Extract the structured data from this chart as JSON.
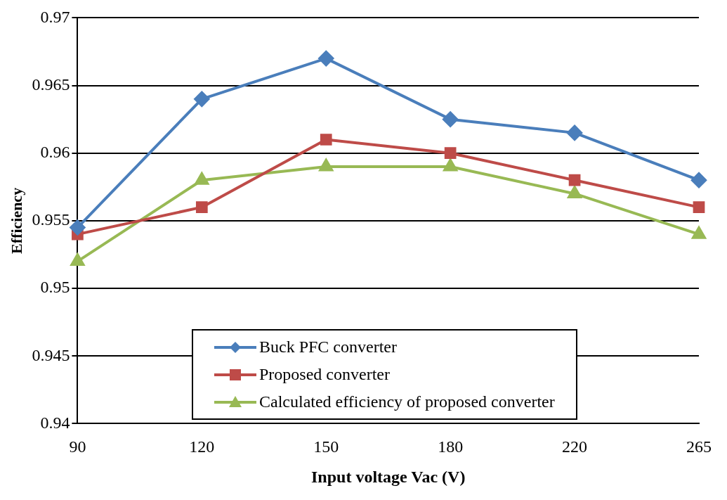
{
  "chart_data": {
    "type": "line",
    "xlabel": "Input voltage Vac (V)",
    "ylabel": "Efficiency",
    "categories": [
      "90",
      "120",
      "150",
      "180",
      "220",
      "265"
    ],
    "series": [
      {
        "name": "Buck PFC converter",
        "color": "#4a7ebb",
        "marker": "diamond",
        "values": [
          0.9545,
          0.964,
          0.967,
          0.9625,
          0.9615,
          0.958
        ]
      },
      {
        "name": "Proposed converter",
        "color": "#be4b48",
        "marker": "square",
        "values": [
          0.954,
          0.956,
          0.961,
          0.96,
          0.958,
          0.956
        ]
      },
      {
        "name": "Calculated efficiency of proposed converter",
        "color": "#98b954",
        "marker": "triangle",
        "values": [
          0.952,
          0.958,
          0.959,
          0.959,
          0.957,
          0.954
        ]
      }
    ],
    "ylim": [
      0.94,
      0.97
    ],
    "yticks": [
      0.94,
      0.945,
      0.95,
      0.955,
      0.96,
      0.965,
      0.97
    ],
    "grid": "y",
    "legend": "bottom"
  }
}
